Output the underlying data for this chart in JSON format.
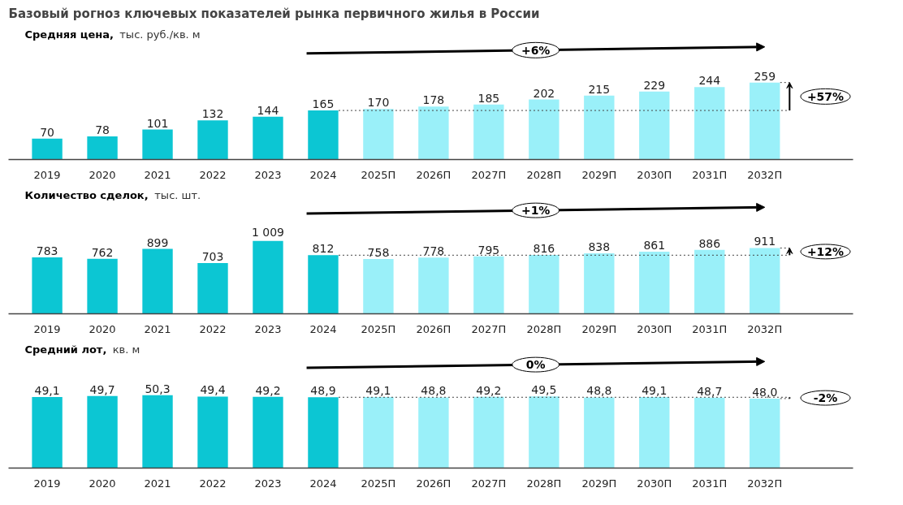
{
  "chart_data": [
    {
      "type": "bar",
      "title": "Базовый рогноз ключевых показателей рынка первичного жилья в России",
      "subtitle": "Средняя цена,",
      "ylabel": "тыс. руб./кв. м",
      "categories": [
        "2019",
        "2020",
        "2021",
        "2022",
        "2023",
        "2024",
        "2025П",
        "2026П",
        "2027П",
        "2028П",
        "2029П",
        "2030П",
        "2031П",
        "2032П"
      ],
      "values": [
        70,
        78,
        101,
        132,
        144,
        165,
        170,
        178,
        185,
        202,
        215,
        229,
        244,
        259
      ],
      "colors": [
        "#0cc6d3",
        "#0cc6d3",
        "#0cc6d3",
        "#0cc6d3",
        "#0cc6d3",
        "#0cc6d3",
        "#9af0f9",
        "#9af0f9",
        "#9af0f9",
        "#9af0f9",
        "#9af0f9",
        "#9af0f9",
        "#9af0f9",
        "#9af0f9"
      ],
      "data_labels": true,
      "grid": false,
      "legend": false,
      "ref_lines": [
        {
          "axis": "y",
          "value": 165,
          "line_style": "dotted"
        }
      ],
      "annotations": [
        "+6%",
        "+57%"
      ]
    },
    {
      "type": "bar",
      "subtitle": "Количество сделок,",
      "ylabel": "тыс. шт.",
      "categories": [
        "2019",
        "2020",
        "2021",
        "2022",
        "2023",
        "2024",
        "2025П",
        "2026П",
        "2027П",
        "2028П",
        "2029П",
        "2030П",
        "2031П",
        "2032П"
      ],
      "values": [
        783,
        762,
        899,
        703,
        1009,
        812,
        758,
        778,
        795,
        816,
        838,
        861,
        886,
        911
      ],
      "value_labels": [
        "783",
        "762",
        "899",
        "703",
        "1 009",
        "812",
        "758",
        "778",
        "795",
        "816",
        "838",
        "861",
        "886",
        "911"
      ],
      "colors": [
        "#0cc6d3",
        "#0cc6d3",
        "#0cc6d3",
        "#0cc6d3",
        "#0cc6d3",
        "#0cc6d3",
        "#9af0f9",
        "#9af0f9",
        "#9af0f9",
        "#9af0f9",
        "#9af0f9",
        "#9af0f9",
        "#9af0f9",
        "#9af0f9"
      ],
      "grid": false,
      "legend": false,
      "ref_lines": [
        {
          "axis": "y",
          "value": 812,
          "line_style": "dotted"
        }
      ],
      "annotations": [
        "+1%",
        "+12%"
      ]
    },
    {
      "type": "bar",
      "subtitle": "Средний лот,",
      "ylabel": "кв. м",
      "categories": [
        "2019",
        "2020",
        "2021",
        "2022",
        "2023",
        "2024",
        "2025П",
        "2026П",
        "2027П",
        "2028П",
        "2029П",
        "2030П",
        "2031П",
        "2032П"
      ],
      "values": [
        49.1,
        49.7,
        50.3,
        49.4,
        49.2,
        48.9,
        49.1,
        48.8,
        49.2,
        49.5,
        48.8,
        49.1,
        48.7,
        48.0
      ],
      "value_labels": [
        "49,1",
        "49,7",
        "50,3",
        "49,4",
        "49,2",
        "48,9",
        "49,1",
        "48,8",
        "49,2",
        "49,5",
        "48,8",
        "49,1",
        "48,7",
        "48,0"
      ],
      "colors": [
        "#0cc6d3",
        "#0cc6d3",
        "#0cc6d3",
        "#0cc6d3",
        "#0cc6d3",
        "#0cc6d3",
        "#9af0f9",
        "#9af0f9",
        "#9af0f9",
        "#9af0f9",
        "#9af0f9",
        "#9af0f9",
        "#9af0f9",
        "#9af0f9"
      ],
      "grid": false,
      "legend": false,
      "ref_lines": [
        {
          "axis": "y",
          "value": 48.9,
          "line_style": "dotted"
        }
      ],
      "annotations": [
        "0%",
        "-2%"
      ]
    }
  ]
}
